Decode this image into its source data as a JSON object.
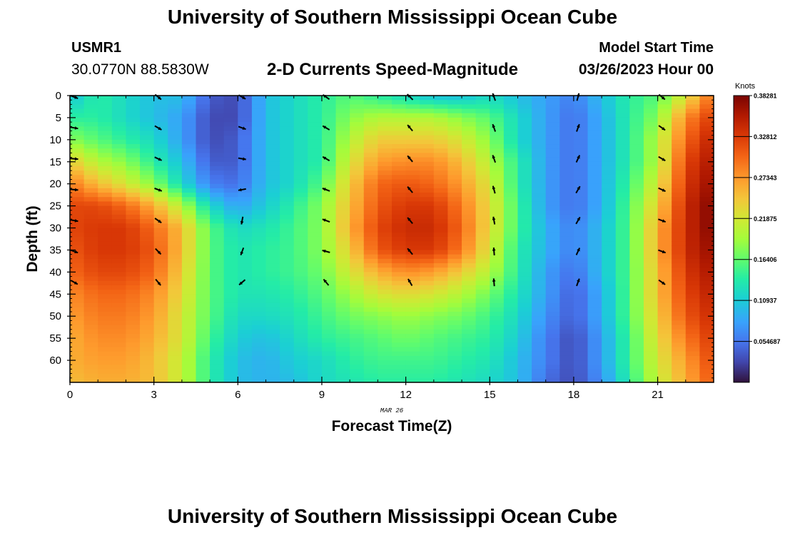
{
  "header": {
    "title": "University of Southern Mississippi Ocean Cube",
    "station_id": "USMR1",
    "station_coords": "30.0770N  88.5830W",
    "subtitle": "2-D Currents Speed-Magnitude",
    "start_label": "Model Start Time",
    "start_value": "03/26/2023 Hour 00"
  },
  "footer": {
    "title": "University of Southern Mississippi Ocean Cube"
  },
  "chart_data": {
    "type": "heatmap",
    "title": "2-D Currents Speed-Magnitude",
    "xlabel": "Forecast Time(Z)",
    "ylabel": "Depth (ft)",
    "date_label": "MAR 26",
    "xlim": [
      0,
      23
    ],
    "ylim": [
      0,
      65
    ],
    "x_ticks": [
      0,
      3,
      6,
      9,
      12,
      15,
      18,
      21
    ],
    "y_ticks": [
      0,
      5,
      10,
      15,
      20,
      25,
      30,
      35,
      40,
      45,
      50,
      55,
      60
    ],
    "colorbar": {
      "title": "Knots",
      "min": 0.0,
      "max": 0.3828,
      "ticks": [
        "0.054687",
        "0.10937",
        "0.16406",
        "0.21875",
        "0.27343",
        "0.32812",
        "0.38281"
      ],
      "tick_values": [
        0.054687,
        0.10937,
        0.16406,
        0.21875,
        0.27343,
        0.32812,
        0.38281
      ]
    },
    "hours": [
      0,
      1,
      2,
      3,
      4,
      5,
      6,
      7,
      8,
      9,
      10,
      11,
      12,
      13,
      14,
      15,
      16,
      17,
      18,
      19,
      20,
      21,
      22,
      23
    ],
    "depths": [
      0,
      5,
      10,
      15,
      20,
      25,
      30,
      35,
      40,
      45,
      50,
      55,
      60,
      65
    ],
    "speed_knots": [
      [
        0.1,
        0.14,
        0.12,
        0.1,
        0.1,
        0.04,
        0.03,
        0.1,
        0.12,
        0.14,
        0.16,
        0.14,
        0.12,
        0.1,
        0.1,
        0.12,
        0.1,
        0.08,
        0.06,
        0.1,
        0.14,
        0.16,
        0.22,
        0.3
      ],
      [
        0.14,
        0.14,
        0.12,
        0.1,
        0.08,
        0.03,
        0.03,
        0.1,
        0.12,
        0.14,
        0.18,
        0.2,
        0.2,
        0.2,
        0.18,
        0.16,
        0.12,
        0.08,
        0.05,
        0.09,
        0.14,
        0.18,
        0.28,
        0.33
      ],
      [
        0.18,
        0.16,
        0.14,
        0.12,
        0.08,
        0.03,
        0.04,
        0.1,
        0.12,
        0.14,
        0.2,
        0.24,
        0.24,
        0.24,
        0.22,
        0.18,
        0.12,
        0.08,
        0.05,
        0.09,
        0.14,
        0.2,
        0.3,
        0.35
      ],
      [
        0.24,
        0.2,
        0.18,
        0.14,
        0.1,
        0.04,
        0.04,
        0.1,
        0.12,
        0.14,
        0.22,
        0.27,
        0.28,
        0.28,
        0.25,
        0.2,
        0.14,
        0.08,
        0.05,
        0.09,
        0.14,
        0.2,
        0.32,
        0.36
      ],
      [
        0.29,
        0.25,
        0.22,
        0.18,
        0.12,
        0.06,
        0.05,
        0.1,
        0.12,
        0.16,
        0.24,
        0.3,
        0.31,
        0.3,
        0.27,
        0.22,
        0.14,
        0.08,
        0.05,
        0.09,
        0.15,
        0.22,
        0.33,
        0.37
      ],
      [
        0.32,
        0.32,
        0.3,
        0.26,
        0.2,
        0.12,
        0.08,
        0.11,
        0.14,
        0.18,
        0.25,
        0.31,
        0.33,
        0.33,
        0.29,
        0.23,
        0.15,
        0.08,
        0.05,
        0.09,
        0.16,
        0.24,
        0.34,
        0.38
      ],
      [
        0.32,
        0.33,
        0.33,
        0.3,
        0.25,
        0.16,
        0.12,
        0.13,
        0.15,
        0.18,
        0.26,
        0.32,
        0.34,
        0.34,
        0.3,
        0.23,
        0.15,
        0.09,
        0.06,
        0.1,
        0.16,
        0.26,
        0.34,
        0.38
      ],
      [
        0.31,
        0.33,
        0.33,
        0.31,
        0.25,
        0.16,
        0.13,
        0.14,
        0.15,
        0.18,
        0.24,
        0.31,
        0.33,
        0.33,
        0.29,
        0.22,
        0.14,
        0.09,
        0.06,
        0.1,
        0.16,
        0.26,
        0.34,
        0.37
      ],
      [
        0.3,
        0.32,
        0.32,
        0.3,
        0.24,
        0.16,
        0.13,
        0.14,
        0.15,
        0.17,
        0.22,
        0.26,
        0.28,
        0.27,
        0.24,
        0.2,
        0.14,
        0.08,
        0.05,
        0.1,
        0.16,
        0.25,
        0.33,
        0.36
      ],
      [
        0.28,
        0.3,
        0.3,
        0.28,
        0.23,
        0.16,
        0.13,
        0.13,
        0.14,
        0.16,
        0.19,
        0.22,
        0.23,
        0.22,
        0.2,
        0.17,
        0.13,
        0.08,
        0.04,
        0.09,
        0.16,
        0.25,
        0.32,
        0.35
      ],
      [
        0.27,
        0.29,
        0.29,
        0.27,
        0.22,
        0.16,
        0.12,
        0.12,
        0.13,
        0.15,
        0.17,
        0.18,
        0.19,
        0.18,
        0.17,
        0.15,
        0.12,
        0.07,
        0.04,
        0.09,
        0.16,
        0.24,
        0.31,
        0.34
      ],
      [
        0.26,
        0.28,
        0.28,
        0.26,
        0.22,
        0.15,
        0.11,
        0.1,
        0.12,
        0.14,
        0.15,
        0.16,
        0.17,
        0.16,
        0.15,
        0.14,
        0.11,
        0.06,
        0.03,
        0.08,
        0.15,
        0.23,
        0.29,
        0.33
      ],
      [
        0.26,
        0.27,
        0.27,
        0.25,
        0.21,
        0.14,
        0.1,
        0.09,
        0.11,
        0.12,
        0.14,
        0.15,
        0.15,
        0.15,
        0.14,
        0.13,
        0.1,
        0.06,
        0.03,
        0.08,
        0.15,
        0.22,
        0.27,
        0.32
      ],
      [
        0.25,
        0.26,
        0.26,
        0.25,
        0.21,
        0.14,
        0.1,
        0.09,
        0.1,
        0.12,
        0.13,
        0.14,
        0.14,
        0.14,
        0.13,
        0.12,
        0.1,
        0.05,
        0.03,
        0.07,
        0.14,
        0.21,
        0.26,
        0.31
      ]
    ],
    "vector_hours": [
      0,
      3,
      6,
      9,
      12,
      15,
      18,
      21
    ],
    "vector_depths": [
      0,
      7,
      14,
      21,
      28,
      35,
      42
    ],
    "vector_directions_deg": [
      [
        110,
        130,
        120,
        305,
        315,
        340,
        15,
        130
      ],
      [
        100,
        120,
        110,
        300,
        320,
        340,
        20,
        125
      ],
      [
        95,
        115,
        100,
        300,
        320,
        340,
        25,
        120
      ],
      [
        95,
        110,
        260,
        290,
        320,
        345,
        30,
        115
      ],
      [
        100,
        125,
        190,
        290,
        320,
        350,
        30,
        110
      ],
      [
        110,
        135,
        200,
        285,
        320,
        355,
        25,
        110
      ],
      [
        120,
        140,
        230,
        320,
        330,
        355,
        20,
        125
      ]
    ]
  }
}
